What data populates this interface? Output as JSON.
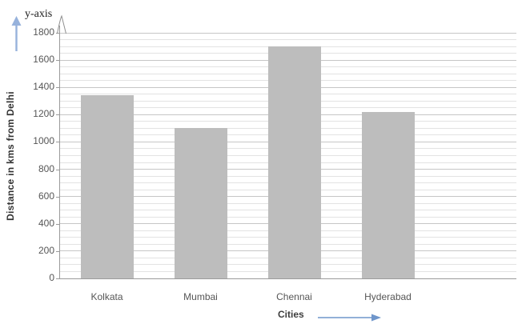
{
  "labels": {
    "y_axis_annotation": "y-axis"
  },
  "chart_data": {
    "type": "bar",
    "categories": [
      "Kolkata",
      "Mumbai",
      "Chennai",
      "Hyderabad"
    ],
    "values": [
      1340,
      1100,
      1700,
      1220
    ],
    "title": "",
    "xlabel": "Cities",
    "ylabel": "Distance  in kms from Delhi",
    "ylim": [
      0,
      1800
    ],
    "yticks": [
      0,
      200,
      400,
      600,
      800,
      1000,
      1200,
      1400,
      1600,
      1800
    ],
    "major_gridline_step": 200,
    "minor_gridline_step": 50,
    "grid": "horizontal-major-and-minor",
    "legend": "none",
    "bar_color": "#bdbdbd",
    "axis_color": "#9b9b9b",
    "major_gridline_color": "#c6c6c6",
    "minor_gridline_color": "#e3e3e3",
    "tick_label_color": "#565656",
    "up_arrow_color": "#97b2dc",
    "right_arrow_color": "#6f96cb",
    "axis_tip_color": "#8f8f8f"
  }
}
